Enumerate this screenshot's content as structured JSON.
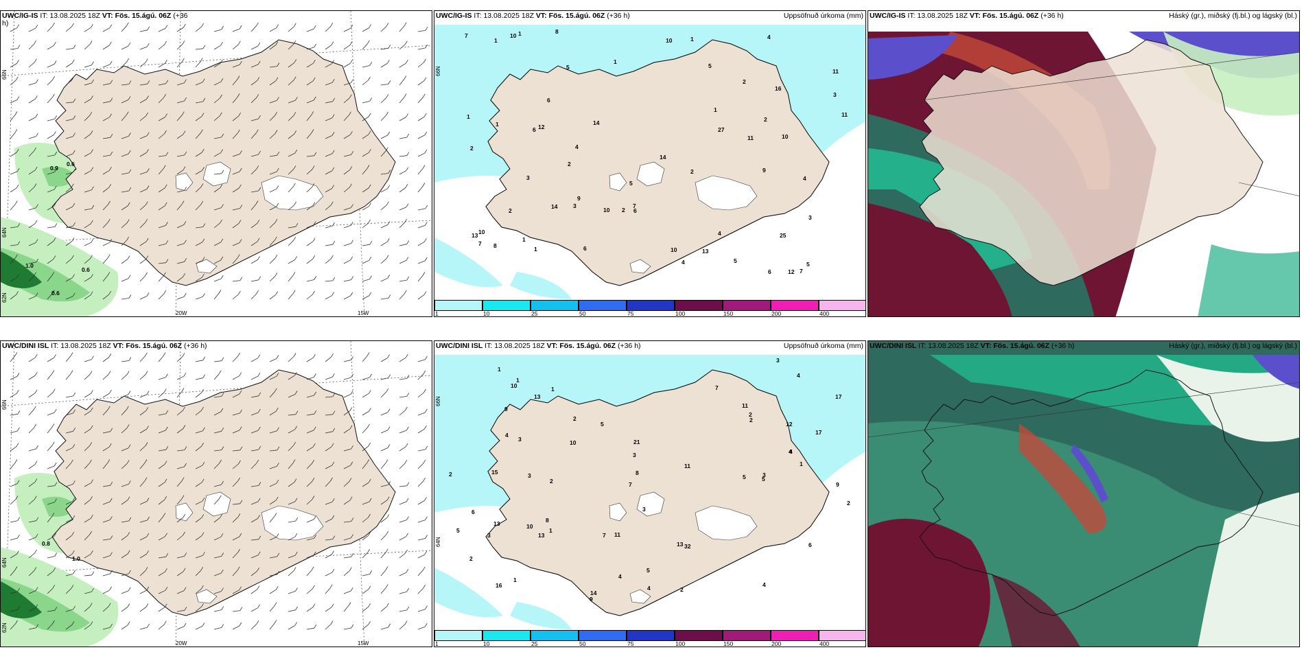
{
  "palette": {
    "land": "#ede1d3",
    "sea_precip": "#b6f5f8",
    "precip_mid": "#33dde8",
    "green_light": "#c6efc0",
    "green_mid": "#8ad68a",
    "green_dark": "#1f7a32",
    "cloud_high_dark": "#6e1533",
    "cloud_mid_red": "#c24a3a",
    "cloud_low_blue": "#5b4fcc",
    "cloud_green": "#23b08a",
    "cloud_teal": "#2e6b5e"
  },
  "rows": [
    {
      "panels": [
        {
          "kind": "wind",
          "model": "UWC/IG-IS",
          "it_label": "IT:",
          "it_value": "13.08.2025 18Z",
          "vt_label": "VT:",
          "vt_value": "Fös. 15.ágú. 06Z",
          "lead": "(+36",
          "lead_wrap": "h)",
          "right": "",
          "labels": [
            "0.9",
            "0.6",
            "1.0",
            "0.6",
            "0.6"
          ],
          "lat_labels": [
            "66N",
            "64N",
            "62N"
          ],
          "lon_labels": [
            "20W",
            "15W"
          ]
        },
        {
          "kind": "precip",
          "model": "UWC/IG-IS",
          "it_label": "IT:",
          "it_value": "13.08.2025 18Z",
          "vt_label": "VT:",
          "vt_value": "Fös. 15.ágú. 06Z",
          "lead": "(+36 h)",
          "right": "Uppsöfnuð úrkoma (mm)",
          "numbers": [
            "5",
            "6",
            "10",
            "9",
            "7",
            "5",
            "2",
            "2",
            "3",
            "11",
            "10",
            "10",
            "7",
            "6",
            "4",
            "4",
            "14",
            "11",
            "11",
            "14",
            "12",
            "12",
            "13",
            "14",
            "25",
            "27",
            "10",
            "10",
            "16",
            "13",
            "9",
            "10",
            "8",
            "3",
            "2",
            "1",
            "1",
            "1",
            "3",
            "6",
            "2",
            "5",
            "4",
            "5",
            "6",
            "7",
            "7",
            "6",
            "8",
            "5",
            "4",
            "2",
            "2",
            "4",
            "3",
            "1",
            "1",
            "1",
            "2",
            "1",
            "1",
            "1"
          ],
          "lat_labels": [
            "66N"
          ],
          "legend": [
            "1",
            "10",
            "25",
            "50",
            "75",
            "100",
            "150",
            "200",
            "400"
          ]
        },
        {
          "kind": "cloud",
          "model": "UWC/IG-IS",
          "it_label": "IT:",
          "it_value": "13.08.2025 18Z",
          "vt_label": "VT:",
          "vt_value": "Fös. 15.ágú. 06Z",
          "lead": "(+36 h)",
          "right": "Háský (gr.), miðský (fj.bl.) og lágský (bl.)"
        }
      ]
    },
    {
      "panels": [
        {
          "kind": "wind",
          "model": "UWC/DINI ISL",
          "it_label": "IT:",
          "it_value": "13.08.2025 18Z",
          "vt_label": "VT:",
          "vt_value": "Fös. 15.ágú. 06Z",
          "lead": "(+36 h)",
          "lead_wrap": "",
          "right": "",
          "labels": [
            "0.8",
            "1.0"
          ],
          "lat_labels": [
            "66N",
            "64N",
            "62N"
          ],
          "lon_labels": [
            "20W",
            "15W"
          ]
        },
        {
          "kind": "precip",
          "model": "UWC/DINI ISL",
          "it_label": "IT:",
          "it_value": "13.08.2025 18Z",
          "vt_label": "VT:",
          "vt_value": "Fös. 15.ágú. 06Z",
          "lead": "(+36 h)",
          "right": "Uppsöfnuð úrkoma (mm)",
          "numbers": [
            "5",
            "4",
            "3",
            "3",
            "5",
            "5",
            "7",
            "10",
            "11",
            "9",
            "13",
            "13",
            "14",
            "17",
            "16",
            "17",
            "32",
            "21",
            "15",
            "11",
            "13",
            "9",
            "8",
            "5",
            "7",
            "6",
            "4",
            "3",
            "4",
            "12",
            "4",
            "4",
            "9",
            "11",
            "13",
            "10",
            "10",
            "6",
            "5",
            "8",
            "7",
            "4",
            "2",
            "2",
            "3",
            "2",
            "1",
            "1",
            "2",
            "2",
            "1",
            "1",
            "2",
            "3",
            "1",
            "3",
            "4",
            "3",
            "2",
            "2",
            "1"
          ],
          "lat_labels": [
            "66N",
            "64N"
          ],
          "legend": [
            "1",
            "10",
            "25",
            "50",
            "75",
            "100",
            "150",
            "200",
            "400"
          ]
        },
        {
          "kind": "cloud",
          "model": "UWC/DINI ISL",
          "it_label": "IT:",
          "it_value": "13.08.2025 18Z",
          "vt_label": "VT:",
          "vt_value": "Fös. 15.ágú. 06Z",
          "lead": "(+36 h)",
          "right": "Háský (gr.), miðský (fj.bl.) og lágský (bl.)"
        }
      ]
    }
  ]
}
